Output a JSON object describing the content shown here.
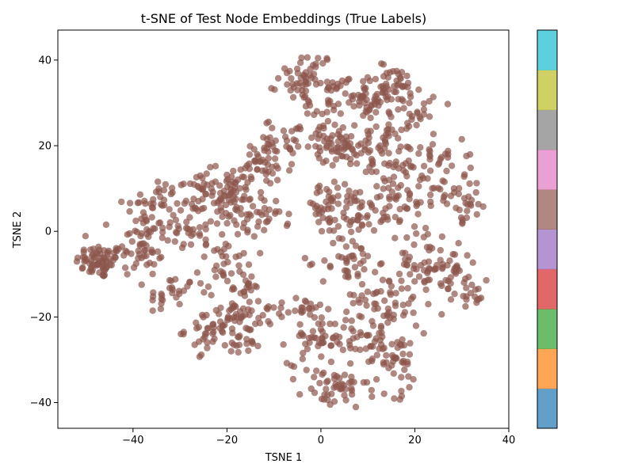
{
  "chart_data": {
    "type": "scatter",
    "title": "t-SNE of Test Node Embeddings (True Labels)",
    "xlabel": "TSNE 1",
    "ylabel": "TSNE 2",
    "xlim": [
      -56,
      40
    ],
    "ylim": [
      -46,
      47
    ],
    "xticks": [
      -40,
      -20,
      0,
      20,
      40
    ],
    "yticks": [
      -40,
      -20,
      0,
      20,
      40
    ],
    "xtick_labels": [
      "−40",
      "−20",
      "0",
      "20",
      "40"
    ],
    "ytick_labels": [
      "−40",
      "−20",
      "0",
      "20",
      "40"
    ],
    "grid": false,
    "legend": "none",
    "point_color": "#8c564b",
    "point_alpha": 0.7,
    "point_count_estimate": 1200,
    "clusters": [
      {
        "center": [
          -47,
          -7
        ],
        "spread": [
          2.6,
          2.0
        ],
        "n": 70
      },
      {
        "center": [
          -38,
          -3
        ],
        "spread": [
          3.0,
          4.0
        ],
        "n": 55
      },
      {
        "center": [
          -36,
          6
        ],
        "spread": [
          3.0,
          3.0
        ],
        "n": 30
      },
      {
        "center": [
          -28,
          1
        ],
        "spread": [
          2.5,
          3.0
        ],
        "n": 30
      },
      {
        "center": [
          -32,
          -15
        ],
        "spread": [
          2.5,
          2.5
        ],
        "n": 25
      },
      {
        "center": [
          -26,
          8
        ],
        "spread": [
          4.0,
          3.0
        ],
        "n": 45
      },
      {
        "center": [
          -19,
          11
        ],
        "spread": [
          3.5,
          3.5
        ],
        "n": 40
      },
      {
        "center": [
          -18,
          4
        ],
        "spread": [
          3.0,
          3.0
        ],
        "n": 35
      },
      {
        "center": [
          -20,
          -8
        ],
        "spread": [
          3.0,
          3.5
        ],
        "n": 40
      },
      {
        "center": [
          -17,
          -17
        ],
        "spread": [
          2.5,
          3.0
        ],
        "n": 30
      },
      {
        "center": [
          -23,
          -23
        ],
        "spread": [
          3.0,
          2.5
        ],
        "n": 45
      },
      {
        "center": [
          -16,
          -24
        ],
        "spread": [
          3.0,
          2.5
        ],
        "n": 30
      },
      {
        "center": [
          -12,
          15
        ],
        "spread": [
          3.0,
          3.5
        ],
        "n": 45
      },
      {
        "center": [
          -7,
          22
        ],
        "spread": [
          2.5,
          2.0
        ],
        "n": 25
      },
      {
        "center": [
          -11,
          3
        ],
        "spread": [
          2.0,
          2.0
        ],
        "n": 18
      },
      {
        "center": [
          -6,
          -18
        ],
        "spread": [
          3.5,
          1.2
        ],
        "n": 25
      },
      {
        "center": [
          -3,
          36
        ],
        "spread": [
          3.0,
          3.0
        ],
        "n": 55
      },
      {
        "center": [
          2,
          30
        ],
        "spread": [
          2.5,
          3.0
        ],
        "n": 30
      },
      {
        "center": [
          1,
          20
        ],
        "spread": [
          3.0,
          3.0
        ],
        "n": 35
      },
      {
        "center": [
          1,
          5
        ],
        "spread": [
          2.5,
          3.0
        ],
        "n": 30
      },
      {
        "center": [
          -1,
          -25
        ],
        "spread": [
          3.0,
          3.0
        ],
        "n": 45
      },
      {
        "center": [
          3,
          -37
        ],
        "spread": [
          3.5,
          2.5
        ],
        "n": 50
      },
      {
        "center": [
          9,
          31
        ],
        "spread": [
          3.0,
          2.5
        ],
        "n": 40
      },
      {
        "center": [
          7,
          20
        ],
        "spread": [
          3.0,
          3.0
        ],
        "n": 35
      },
      {
        "center": [
          6,
          5
        ],
        "spread": [
          3.0,
          3.0
        ],
        "n": 35
      },
      {
        "center": [
          6,
          -7
        ],
        "spread": [
          3.0,
          3.0
        ],
        "n": 40
      },
      {
        "center": [
          9,
          -25
        ],
        "spread": [
          3.0,
          3.0
        ],
        "n": 40
      },
      {
        "center": [
          15,
          34
        ],
        "spread": [
          3.5,
          2.5
        ],
        "n": 40
      },
      {
        "center": [
          14,
          18
        ],
        "spread": [
          3.5,
          3.5
        ],
        "n": 45
      },
      {
        "center": [
          13,
          5
        ],
        "spread": [
          3.0,
          2.5
        ],
        "n": 30
      },
      {
        "center": [
          13,
          -15
        ],
        "spread": [
          3.0,
          3.5
        ],
        "n": 40
      },
      {
        "center": [
          16,
          -30
        ],
        "spread": [
          3.0,
          4.0
        ],
        "n": 45
      },
      {
        "center": [
          19,
          28
        ],
        "spread": [
          2.5,
          4.0
        ],
        "n": 35
      },
      {
        "center": [
          20,
          10
        ],
        "spread": [
          3.5,
          4.0
        ],
        "n": 40
      },
      {
        "center": [
          20,
          -8
        ],
        "spread": [
          3.0,
          5.0
        ],
        "n": 45
      },
      {
        "center": [
          25,
          18
        ],
        "spread": [
          3.0,
          2.5
        ],
        "n": 25
      },
      {
        "center": [
          30,
          7
        ],
        "spread": [
          3.0,
          2.5
        ],
        "n": 35
      },
      {
        "center": [
          27,
          -10
        ],
        "spread": [
          3.0,
          4.0
        ],
        "n": 45
      },
      {
        "center": [
          32,
          -14
        ],
        "spread": [
          2.0,
          2.0
        ],
        "n": 15
      }
    ]
  },
  "colorbar": {
    "colors": [
      "#1f77b4",
      "#ff7f0e",
      "#2ca02c",
      "#d62728",
      "#9467bd",
      "#8c564b",
      "#e377c2",
      "#7f7f7f",
      "#bcbd22",
      "#17becf"
    ],
    "alpha": 0.7
  }
}
